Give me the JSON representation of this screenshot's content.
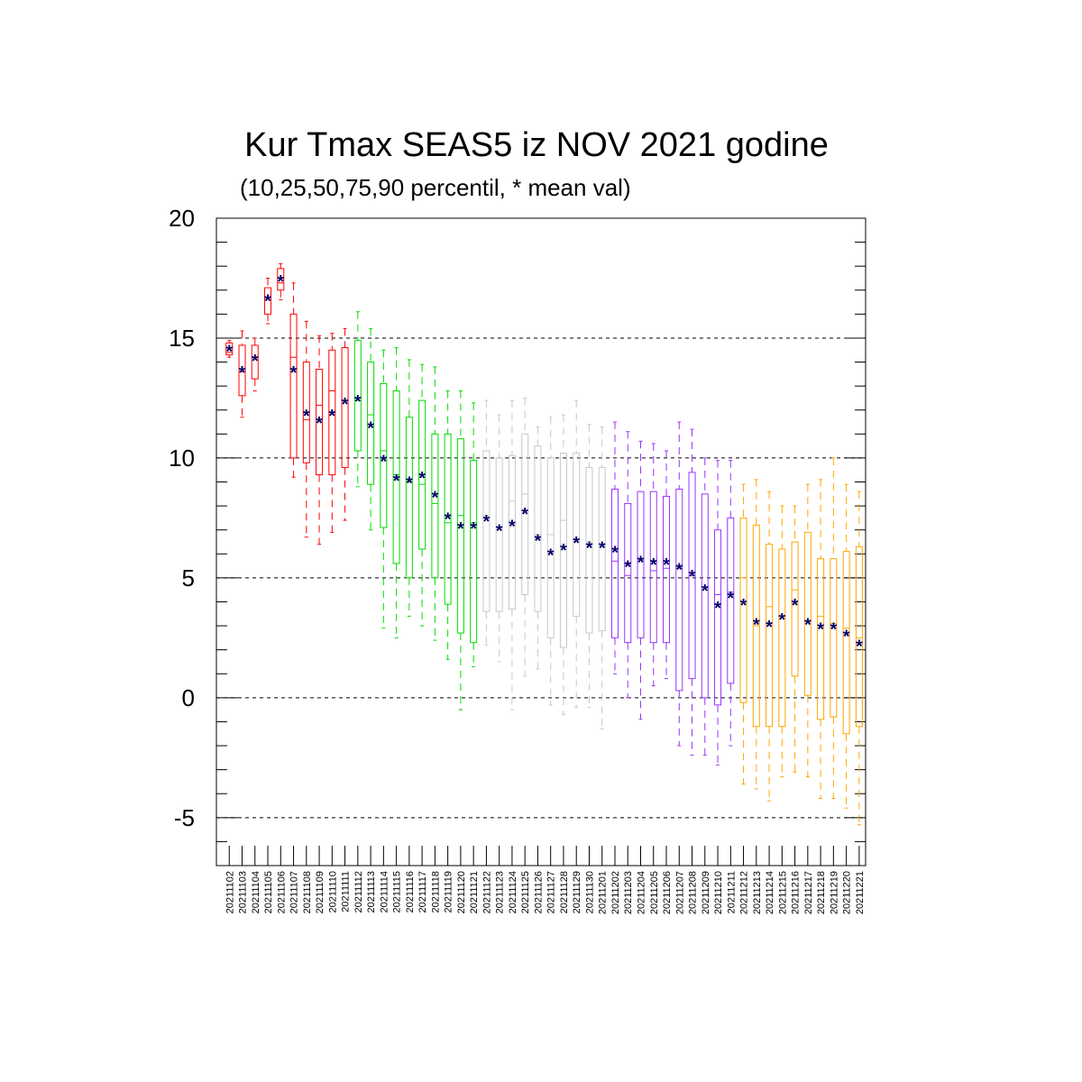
{
  "chart_data": {
    "type": "box",
    "title": "Kur Tmax SEAS5 iz NOV 2021 godine",
    "subtitle": "(10,25,50,75,90 percentil, * mean val)",
    "ylim": [
      -7,
      20
    ],
    "yticks": [
      -5,
      0,
      5,
      10,
      15,
      20
    ],
    "ytick_labels": [
      "-5",
      "0",
      "5",
      "10",
      "15",
      "20"
    ],
    "grid": "horizontal dashed at major ticks",
    "colors": {
      "group1": "#ff0000",
      "group2": "#00dd00",
      "group3": "#c8c8c8",
      "group4": "#9933ff",
      "group5": "#ffa500",
      "mean_marker": "#000066"
    },
    "categories": [
      "20211102",
      "20211103",
      "20211104",
      "20211105",
      "20211106",
      "20211107",
      "20211108",
      "20211109",
      "20211110",
      "20211111",
      "20211112",
      "20211113",
      "20211114",
      "20211115",
      "20211116",
      "20211117",
      "20211118",
      "20211119",
      "20211120",
      "20211121",
      "20211122",
      "20211123",
      "20211124",
      "20211125",
      "20211126",
      "20211127",
      "20211128",
      "20211129",
      "20211130",
      "20211201",
      "20211202",
      "20211203",
      "20211204",
      "20211205",
      "20211206",
      "20211207",
      "20211208",
      "20211209",
      "20211210",
      "20211211",
      "20211212",
      "20211213",
      "20211214",
      "20211215",
      "20211216",
      "20211217",
      "20211218",
      "20211219",
      "20211220",
      "20211221"
    ],
    "group": [
      1,
      1,
      1,
      1,
      1,
      1,
      1,
      1,
      1,
      1,
      2,
      2,
      2,
      2,
      2,
      2,
      2,
      2,
      2,
      2,
      3,
      3,
      3,
      3,
      3,
      3,
      3,
      3,
      3,
      3,
      4,
      4,
      4,
      4,
      4,
      4,
      4,
      4,
      4,
      4,
      5,
      5,
      5,
      5,
      5,
      5,
      5,
      5,
      5,
      5
    ],
    "p10": [
      14.2,
      11.7,
      12.8,
      15.6,
      16.6,
      9.2,
      6.7,
      6.4,
      6.9,
      7.4,
      8.8,
      7.0,
      2.9,
      2.5,
      3.4,
      3.0,
      2.4,
      1.6,
      -0.5,
      1.3,
      2.2,
      1.5,
      -0.5,
      0.9,
      1.2,
      -0.3,
      -0.7,
      -0.4,
      -0.4,
      -1.3,
      1.0,
      0.0,
      -0.9,
      0.5,
      0.8,
      -2.0,
      -2.4,
      -2.4,
      -2.8,
      -2.0,
      -3.6,
      -3.8,
      -4.3,
      -3.3,
      -3.1,
      -3.3,
      -4.2,
      -4.2,
      -4.6,
      -5.3
    ],
    "p25": [
      14.3,
      12.6,
      13.3,
      16.0,
      17.0,
      10.0,
      9.8,
      9.3,
      9.3,
      9.6,
      10.3,
      8.9,
      7.1,
      5.6,
      5.0,
      6.2,
      5.0,
      3.9,
      2.7,
      2.3,
      3.6,
      3.6,
      3.7,
      4.3,
      3.6,
      2.5,
      2.1,
      3.4,
      2.7,
      2.8,
      2.5,
      2.3,
      2.5,
      2.3,
      2.3,
      0.3,
      0.8,
      0.0,
      -0.3,
      0.6,
      -0.2,
      -1.2,
      -1.2,
      -1.2,
      0.9,
      0.1,
      -0.9,
      -0.8,
      -1.5,
      -1.2
    ],
    "p50": [
      14.4,
      13.6,
      14.2,
      16.7,
      17.3,
      14.2,
      11.6,
      12.2,
      12.8,
      12.4,
      12.4,
      11.8,
      10.3,
      9.3,
      9.0,
      8.9,
      8.1,
      7.3,
      7.6,
      7.3,
      7.6,
      7.1,
      8.2,
      8.5,
      6.8,
      6.8,
      7.4,
      6.5,
      6.5,
      6.4,
      5.7,
      5.1,
      5.8,
      5.3,
      5.4,
      5.4,
      5.1,
      4.6,
      4.3,
      4.4,
      5.0,
      3.0,
      3.8,
      3.4,
      4.5,
      3.2,
      3.4,
      3.1,
      2.9,
      2.5
    ],
    "p75": [
      14.8,
      14.7,
      14.7,
      17.1,
      17.9,
      16.0,
      14.0,
      13.7,
      14.5,
      14.6,
      14.9,
      14.0,
      13.1,
      12.8,
      11.7,
      12.4,
      11.0,
      11.0,
      10.8,
      9.9,
      10.3,
      10.0,
      10.1,
      11.0,
      10.5,
      10.0,
      10.2,
      10.2,
      9.6,
      9.6,
      8.7,
      8.1,
      8.6,
      8.6,
      8.4,
      8.7,
      9.4,
      8.5,
      7.0,
      7.5,
      7.5,
      7.2,
      6.4,
      6.2,
      6.5,
      6.9,
      5.8,
      5.8,
      6.1,
      6.3
    ],
    "p90": [
      14.9,
      15.3,
      15.0,
      17.5,
      18.1,
      17.3,
      15.7,
      15.1,
      15.2,
      15.4,
      16.1,
      15.4,
      14.5,
      14.6,
      14.1,
      13.9,
      13.8,
      12.8,
      12.8,
      12.3,
      12.4,
      11.8,
      12.4,
      12.5,
      11.3,
      11.7,
      11.8,
      12.4,
      11.4,
      11.3,
      11.5,
      11.1,
      10.7,
      10.6,
      10.3,
      11.5,
      11.2,
      10.0,
      9.9,
      9.9,
      8.9,
      9.1,
      8.6,
      8.0,
      8.0,
      8.9,
      9.1,
      10.0,
      8.9,
      8.6
    ],
    "mean": [
      14.5,
      13.6,
      14.1,
      16.6,
      17.4,
      13.6,
      11.8,
      11.5,
      11.8,
      12.3,
      12.4,
      11.3,
      9.9,
      9.1,
      9.0,
      9.2,
      8.4,
      7.5,
      7.1,
      7.1,
      7.4,
      7.0,
      7.2,
      7.7,
      6.6,
      6.0,
      6.2,
      6.5,
      6.3,
      6.3,
      6.1,
      5.5,
      5.7,
      5.6,
      5.6,
      5.4,
      5.1,
      4.5,
      3.8,
      4.2,
      3.9,
      3.1,
      3.0,
      3.3,
      3.9,
      3.1,
      2.9,
      2.9,
      2.6,
      2.2
    ]
  }
}
